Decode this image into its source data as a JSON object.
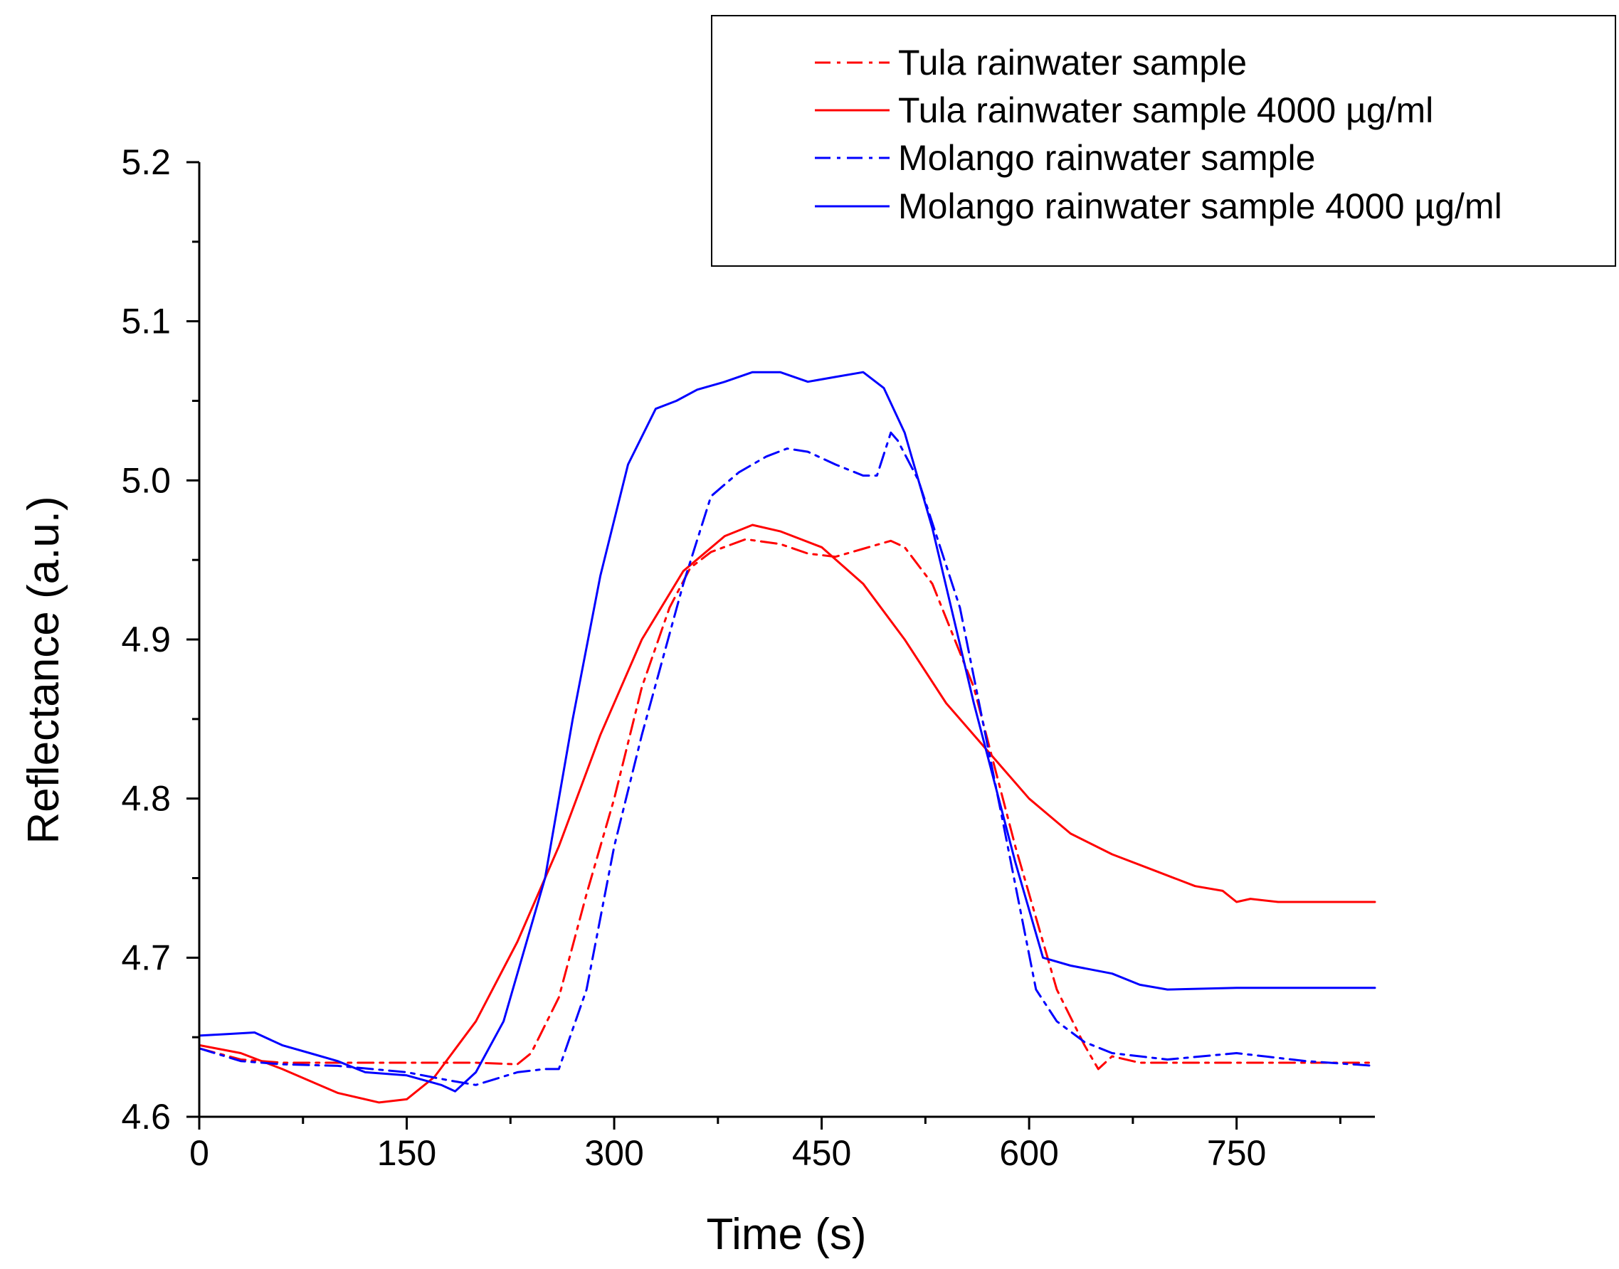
{
  "chart_data": {
    "type": "line",
    "title": "",
    "xlabel": "Time (s)",
    "ylabel": "Reflectance (a.u.)",
    "xlim": [
      0,
      850
    ],
    "ylim": [
      4.6,
      5.2
    ],
    "x_ticks": [
      0,
      150,
      300,
      450,
      600,
      750
    ],
    "x_tick_labels": [
      "0",
      "150",
      "300",
      "450",
      "600",
      "750"
    ],
    "y_ticks": [
      4.6,
      4.7,
      4.8,
      4.9,
      5.0,
      5.1,
      5.2
    ],
    "y_tick_labels": [
      "4.6",
      "4.7",
      "4.8",
      "4.9",
      "5.0",
      "5.1",
      "5.2"
    ],
    "grid": false,
    "legend_position": "top-right",
    "series": [
      {
        "name": "Tula rainwater sample",
        "color": "#ff0000",
        "line_style": "dashdot",
        "x": [
          0,
          30,
          60,
          100,
          150,
          200,
          230,
          240,
          260,
          280,
          300,
          320,
          340,
          355,
          370,
          395,
          420,
          440,
          460,
          480,
          500,
          510,
          530,
          560,
          590,
          620,
          640,
          650,
          660,
          680,
          700,
          750,
          800,
          850
        ],
        "y": [
          4.643,
          4.636,
          4.634,
          4.634,
          4.634,
          4.634,
          4.633,
          4.64,
          4.675,
          4.74,
          4.8,
          4.87,
          4.92,
          4.945,
          4.955,
          4.963,
          4.96,
          4.954,
          4.952,
          4.957,
          4.962,
          4.958,
          4.935,
          4.87,
          4.77,
          4.68,
          4.645,
          4.63,
          4.638,
          4.634,
          4.634,
          4.634,
          4.634,
          4.634
        ]
      },
      {
        "name": "Tula rainwater sample 4000 µg/ml",
        "color": "#ff0000",
        "line_style": "solid",
        "x": [
          0,
          30,
          60,
          100,
          130,
          150,
          170,
          200,
          230,
          260,
          290,
          320,
          350,
          380,
          400,
          420,
          450,
          480,
          510,
          540,
          570,
          600,
          630,
          660,
          690,
          720,
          740,
          750,
          760,
          780,
          800,
          850
        ],
        "y": [
          4.645,
          4.64,
          4.63,
          4.615,
          4.609,
          4.611,
          4.625,
          4.66,
          4.71,
          4.77,
          4.84,
          4.9,
          4.943,
          4.965,
          4.972,
          4.968,
          4.958,
          4.935,
          4.9,
          4.86,
          4.83,
          4.8,
          4.778,
          4.765,
          4.755,
          4.745,
          4.742,
          4.735,
          4.737,
          4.735,
          4.735,
          4.735
        ]
      },
      {
        "name": "Molango rainwater sample",
        "color": "#0000ff",
        "line_style": "dashdot",
        "x": [
          0,
          30,
          60,
          100,
          150,
          180,
          200,
          230,
          250,
          260,
          280,
          300,
          320,
          350,
          370,
          390,
          410,
          425,
          440,
          460,
          480,
          490,
          500,
          505,
          520,
          550,
          580,
          605,
          620,
          640,
          660,
          700,
          750,
          800,
          850
        ],
        "y": [
          4.643,
          4.635,
          4.633,
          4.632,
          4.628,
          4.623,
          4.62,
          4.628,
          4.63,
          4.63,
          4.68,
          4.77,
          4.84,
          4.935,
          4.99,
          5.005,
          5.015,
          5.02,
          5.018,
          5.01,
          5.003,
          5.003,
          5.03,
          5.025,
          5.0,
          4.92,
          4.79,
          4.68,
          4.66,
          4.647,
          4.64,
          4.636,
          4.64,
          4.635,
          4.632
        ]
      },
      {
        "name": "Molango rainwater sample 4000 µg/ml",
        "color": "#0000ff",
        "line_style": "solid",
        "x": [
          0,
          20,
          40,
          60,
          80,
          100,
          120,
          150,
          175,
          185,
          200,
          220,
          250,
          270,
          290,
          310,
          330,
          345,
          360,
          380,
          400,
          420,
          440,
          460,
          480,
          495,
          510,
          530,
          560,
          590,
          610,
          630,
          660,
          680,
          700,
          750,
          800,
          850
        ],
        "y": [
          4.651,
          4.652,
          4.653,
          4.645,
          4.64,
          4.635,
          4.628,
          4.626,
          4.62,
          4.616,
          4.628,
          4.66,
          4.75,
          4.85,
          4.94,
          5.01,
          5.045,
          5.05,
          5.057,
          5.062,
          5.068,
          5.068,
          5.062,
          5.065,
          5.068,
          5.058,
          5.03,
          4.97,
          4.86,
          4.76,
          4.7,
          4.695,
          4.69,
          4.683,
          4.68,
          4.681,
          4.681,
          4.681
        ]
      }
    ]
  }
}
